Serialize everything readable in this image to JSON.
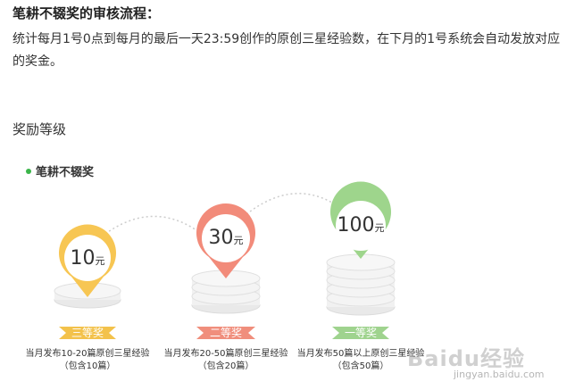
{
  "heading": "笔耕不辍奖的审核流程：",
  "description": "统计每月1号0点到每月的最后一天23:59创作的原创三星经验数，在下月的1号系统会自动发放对应的奖金。",
  "section_title": "奖励等级",
  "panel": {
    "title": "笔耕不辍奖",
    "tiers": [
      {
        "amount": "10",
        "unit": "元",
        "rank": "三等奖",
        "line1": "当月发布10-20篇原创三星经验",
        "line2": "（包含10篇）",
        "color": "#f7c653",
        "ribbon": "#f3c24b"
      },
      {
        "amount": "30",
        "unit": "元",
        "rank": "二等奖",
        "line1": "当月发布20-50篇原创三星经验",
        "line2": "（包含20篇）",
        "color": "#f28b7a",
        "ribbon": "#f08e7c"
      },
      {
        "amount": "100",
        "unit": "元",
        "rank": "一等奖",
        "line1": "当月发布50篇以上原创三星经验",
        "line2": "（包含50篇）",
        "color": "#9ed58c",
        "ribbon": "#9fd38e"
      }
    ]
  },
  "watermark": {
    "brand": "Baidu经验",
    "url": "jingyan.baidu.com"
  }
}
